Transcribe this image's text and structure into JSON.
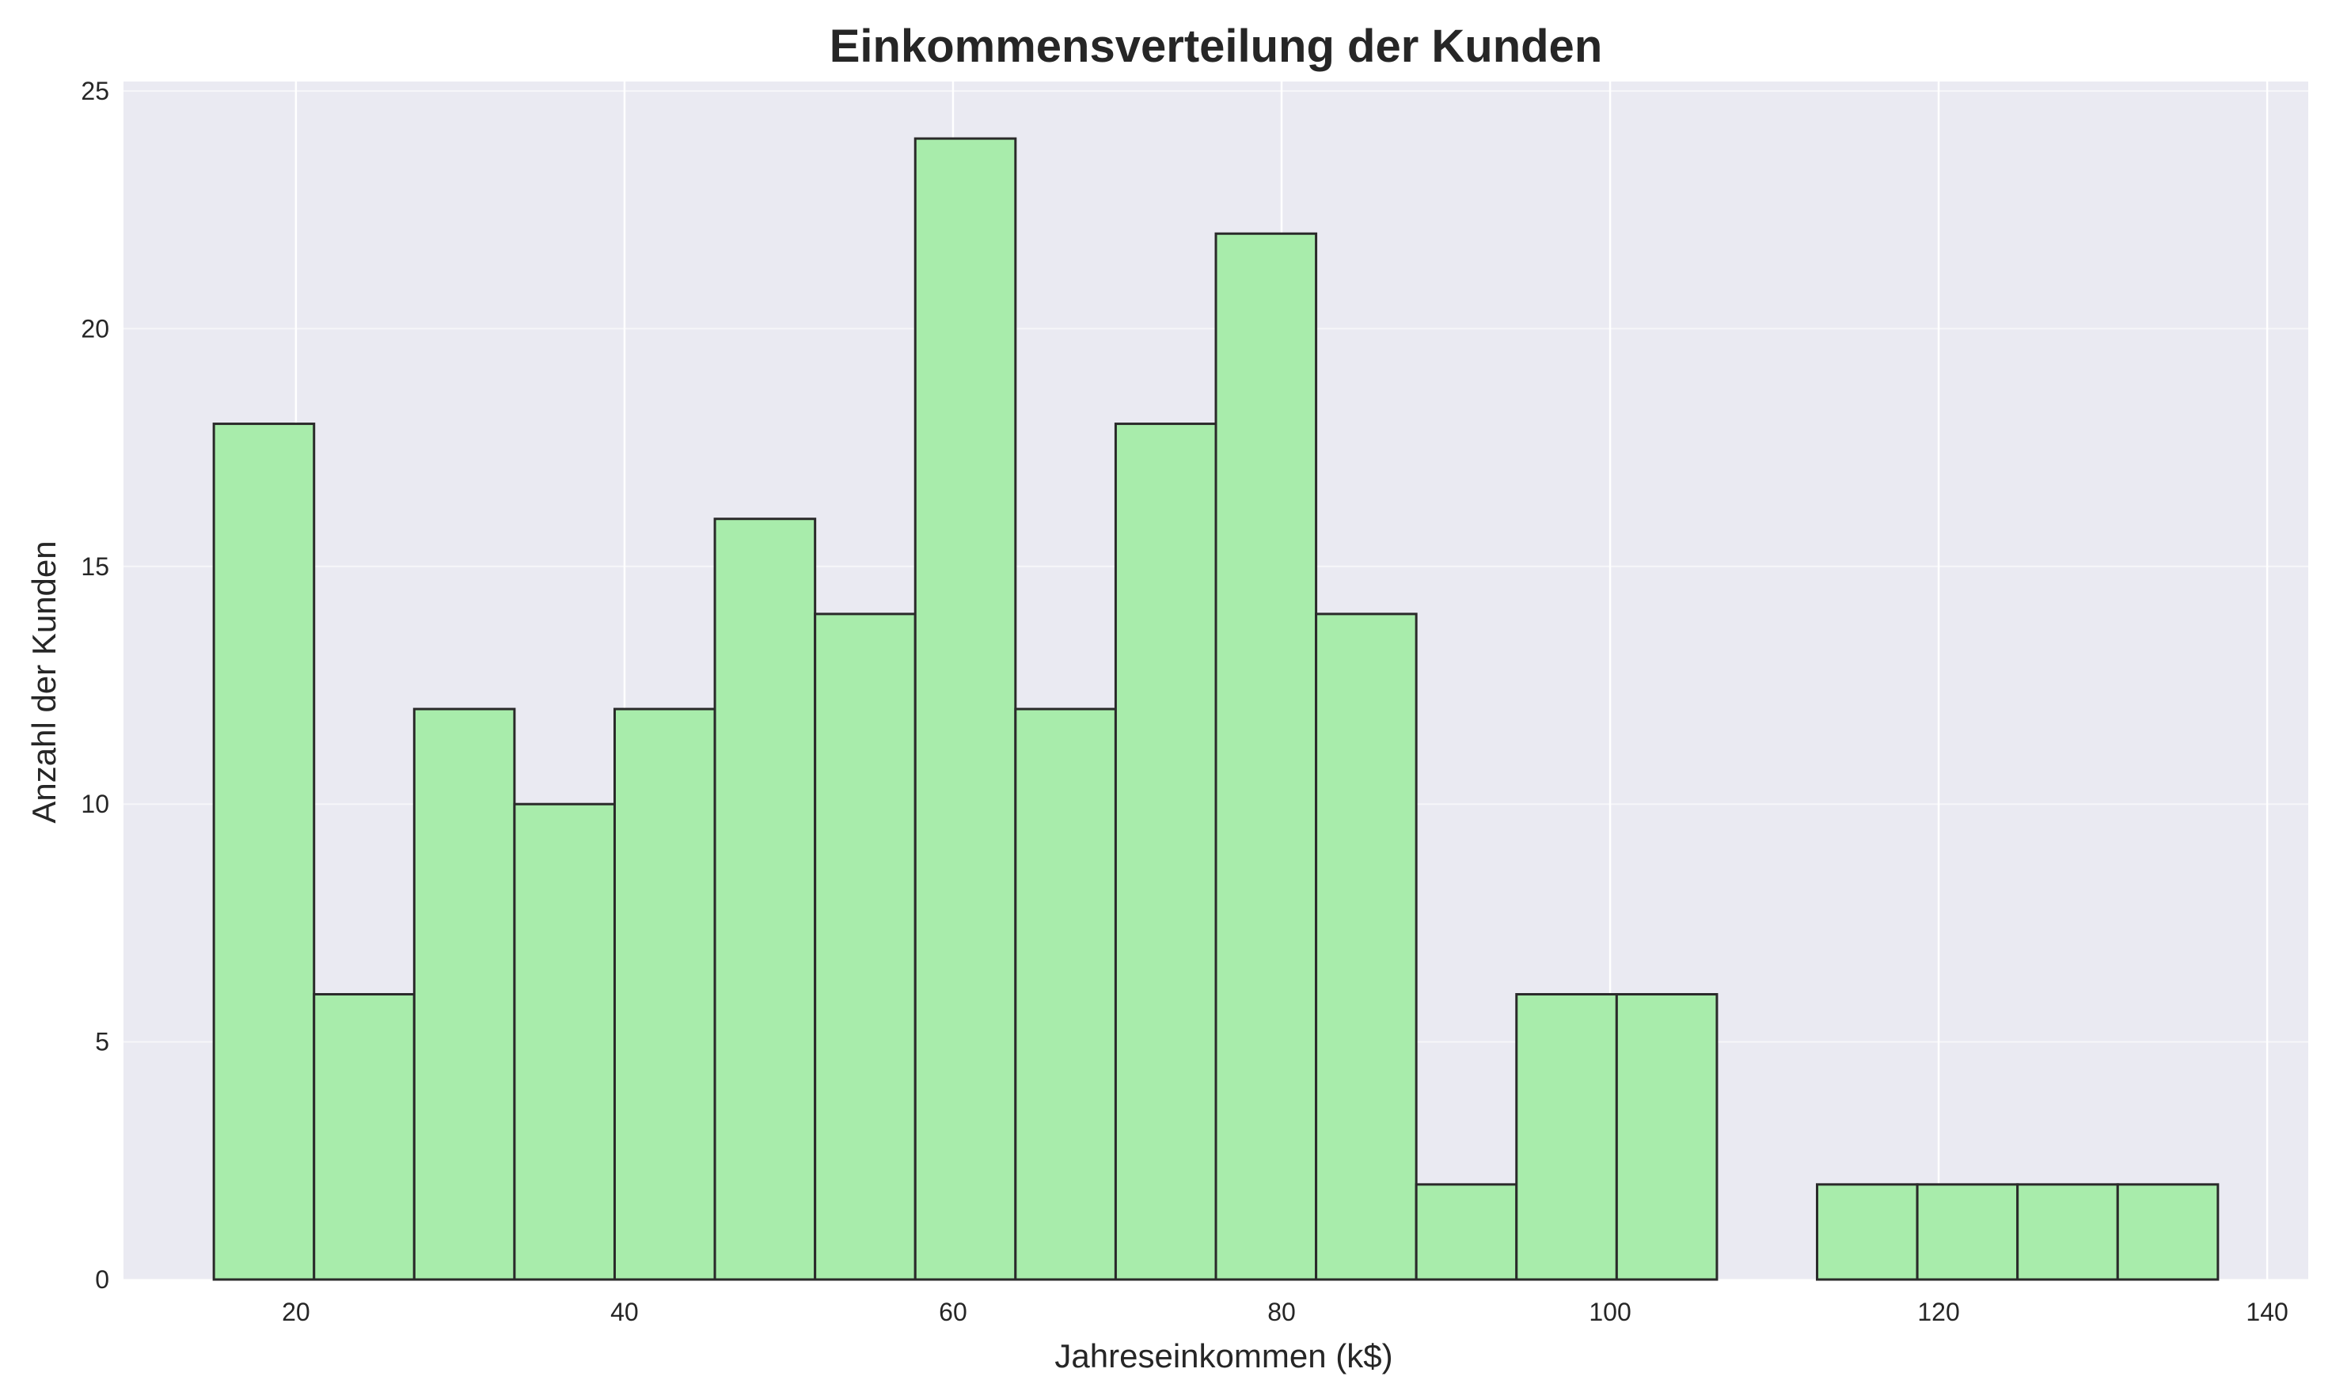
{
  "chart_data": {
    "type": "bar",
    "title": "Einkommensverteilung der Kunden",
    "xlabel": "Jahreseinkommen (k$)",
    "ylabel": "Anzahl der Kunden",
    "xlim": [
      9.5,
      142.5
    ],
    "ylim": [
      0,
      25.2
    ],
    "xticks": [
      20,
      40,
      60,
      80,
      100,
      120,
      140
    ],
    "yticks": [
      0,
      5,
      10,
      15,
      20,
      25
    ],
    "bins": [
      {
        "start": 15.0,
        "end": 21.1,
        "count": 18
      },
      {
        "start": 21.1,
        "end": 27.2,
        "count": 6
      },
      {
        "start": 27.2,
        "end": 33.3,
        "count": 12
      },
      {
        "start": 33.3,
        "end": 39.4,
        "count": 10
      },
      {
        "start": 39.4,
        "end": 45.5,
        "count": 12
      },
      {
        "start": 45.5,
        "end": 51.6,
        "count": 16
      },
      {
        "start": 51.6,
        "end": 57.7,
        "count": 14
      },
      {
        "start": 57.7,
        "end": 63.8,
        "count": 24
      },
      {
        "start": 63.8,
        "end": 69.9,
        "count": 12
      },
      {
        "start": 69.9,
        "end": 76.0,
        "count": 18
      },
      {
        "start": 76.0,
        "end": 82.1,
        "count": 22
      },
      {
        "start": 82.1,
        "end": 88.2,
        "count": 14
      },
      {
        "start": 88.2,
        "end": 94.3,
        "count": 2
      },
      {
        "start": 94.3,
        "end": 100.4,
        "count": 6
      },
      {
        "start": 100.4,
        "end": 106.5,
        "count": 6
      },
      {
        "start": 106.5,
        "end": 112.6,
        "count": 0
      },
      {
        "start": 112.6,
        "end": 118.7,
        "count": 2
      },
      {
        "start": 118.7,
        "end": 124.8,
        "count": 2
      },
      {
        "start": 124.8,
        "end": 130.9,
        "count": 2
      },
      {
        "start": 130.9,
        "end": 137.0,
        "count": 2
      }
    ],
    "grid": true,
    "colors": {
      "bar_fill": "#a8ecab",
      "bar_edge": "#2a2a2a",
      "plot_background": "#eaeaf2",
      "grid": "#ffffff"
    }
  }
}
